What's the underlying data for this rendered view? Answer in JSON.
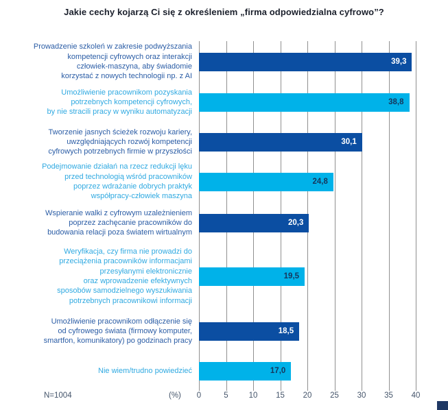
{
  "title": "Jakie cechy kojarzą Ci się z określeniem „firma odpowiedzialna cyfrowo”?",
  "footer": {
    "n_label": "N=1004",
    "unit_label": "(%)"
  },
  "colors": {
    "dark_bar": "#0b4ea2",
    "light_bar": "#00b2e9",
    "dark_label_text": "#2a5ca5",
    "light_label_text": "#2fa9e1",
    "value_on_dark": "#ffffff",
    "value_on_light": "#16365c",
    "gridline": "#8f8f8f",
    "axis_text": "#44546a",
    "title_text": "#1a1f2b",
    "corner_square": "#1f3864"
  },
  "chart_data": {
    "type": "bar",
    "orientation": "horizontal",
    "title": "Jakie cechy kojarzą Ci się z określeniem „firma odpowiedzialna cyfrowo”?",
    "unit": "%",
    "sample": "N=1004",
    "xlim": [
      0,
      40
    ],
    "x_ticks": [
      "0",
      "5",
      "10",
      "15",
      "20",
      "25",
      "30",
      "35",
      "40"
    ],
    "grid": true,
    "legend": false,
    "categories": [
      "Prowadzenie szkoleń w zakresie podwyższania\nkompetencji cyfrowych oraz interakcji\nczłowiek-maszyna, aby świadomie\nkorzystać z nowych technologii np. z AI",
      "Umożliwienie pracownikom pozyskania\npotrzebnych kompetencji cyfrowych,\nby nie stracili pracy w wyniku automatyzacji",
      "Tworzenie jasnych ścieżek rozwoju kariery,\nuwzględniających rozwój kompetencji\ncyfrowych potrzebnych firmie w przyszłości",
      "Podejmowanie działań na rzecz redukcji lęku\nprzed technologią wśród pracowników\npoprzez wdrażanie dobrych praktyk\nwspółpracy-człowiek maszyna",
      "Wspieranie walki z cyfrowym uzależnieniem\npoprzez zachęcanie pracowników do\nbudowania relacji poza światem wirtualnym",
      "Weryfikacja, czy firma nie prowadzi do\nprzeciążenia pracowników informacjami\nprzesyłanymi elektronicznie\noraz wprowadzenie efektywnych\nsposobów samodzielnego wyszukiwania\npotrzebnych pracownikowi informacji",
      "Umożliwienie pracownikom odłączenie się\nod cyfrowego świata (firmowy komputer,\nsmartfon, komunikatory) po godzinach pracy",
      "Nie wiem/trudno powiedzieć"
    ],
    "values": [
      39.3,
      38.8,
      30.1,
      24.8,
      20.3,
      19.5,
      18.5,
      17.0
    ],
    "value_labels": [
      "39,3",
      "38,8",
      "30,1",
      "24,8",
      "20,3",
      "19,5",
      "18,5",
      "17,0"
    ],
    "bar_styles": [
      "dark",
      "light",
      "dark",
      "light",
      "dark",
      "light",
      "dark",
      "light"
    ]
  }
}
